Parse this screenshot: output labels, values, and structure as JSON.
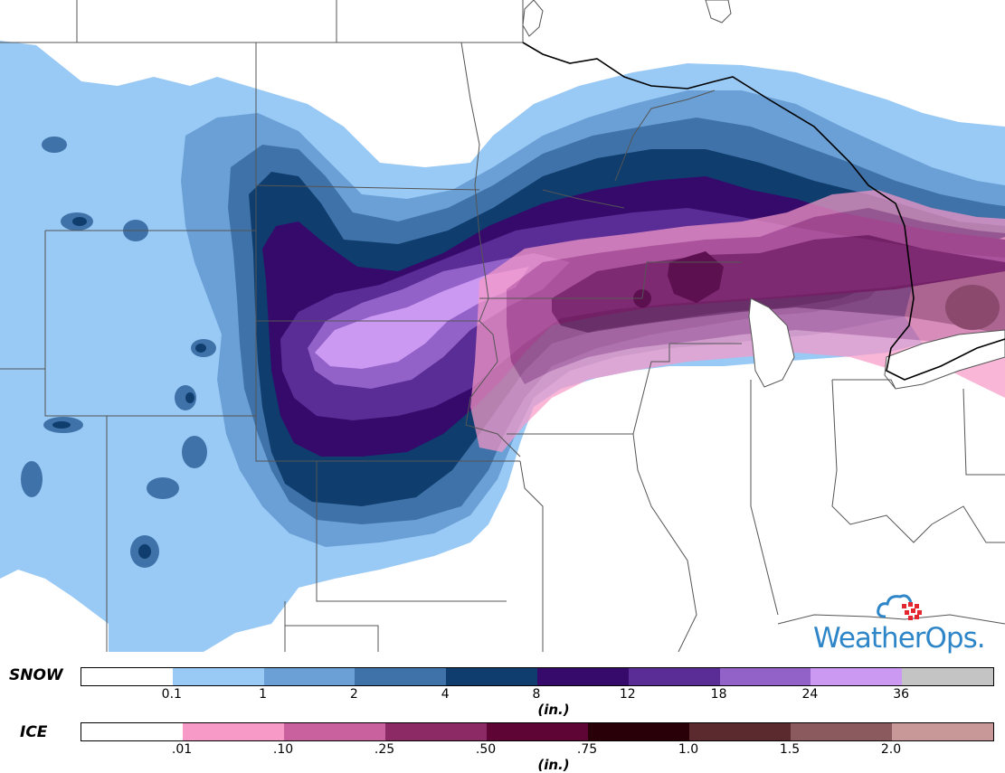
{
  "colors": {
    "snow": [
      "#ffffff",
      "#99c9f5",
      "#6aa0d6",
      "#3f72a8",
      "#0e3d6e",
      "#350a6b",
      "#5a2d96",
      "#9262c8",
      "#cc99f2",
      "#c4c4c4"
    ],
    "ice": [
      "#ffffff",
      "#f79ac8",
      "#c9619f",
      "#8c2a66",
      "#5f0536",
      "#2a0008",
      "#5a2a2e",
      "#8b5a5f",
      "#c89898"
    ],
    "state_lines": "#555555",
    "border": "#000000",
    "brand": "#2e86c8",
    "brand_accent": "#e3262f"
  },
  "legend": {
    "snow": {
      "label": "SNOW",
      "ticks": [
        "0.1",
        "1",
        "2",
        "4",
        "8",
        "12",
        "18",
        "24",
        "36"
      ],
      "units": "(in.)"
    },
    "ice": {
      "label": "ICE",
      "ticks": [
        ".01",
        ".10",
        ".25",
        ".50",
        ".75",
        "1.0",
        "1.5",
        "2.0"
      ],
      "units": "(in.)"
    }
  },
  "logo": {
    "part1": "Weather",
    "part2": "Ops",
    "suffix": "."
  }
}
